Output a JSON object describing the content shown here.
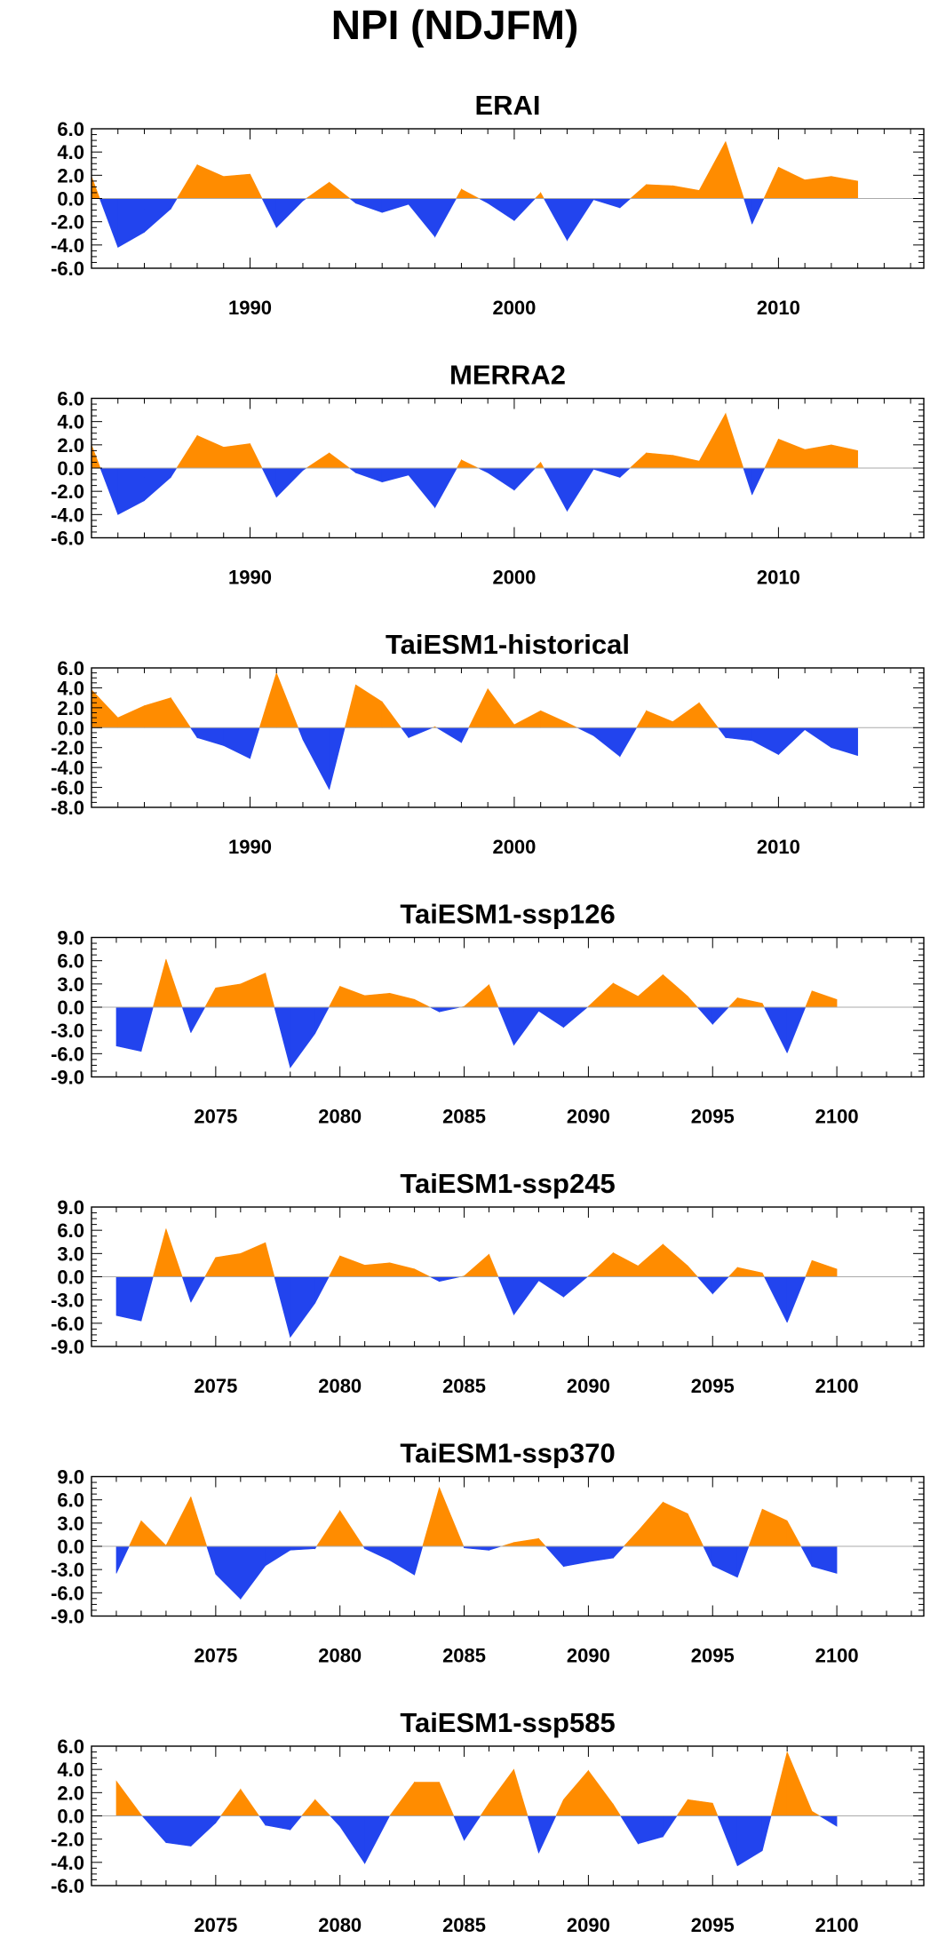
{
  "figure": {
    "title": "NPI (NDJFM)"
  },
  "colors": {
    "positive": "#FF8C00",
    "negative": "#2244EE",
    "zero_line": "#AAAAAA",
    "frame": "#000000"
  },
  "chart_data": [
    {
      "type": "area",
      "title": "ERAI",
      "xlabel": "",
      "ylabel": "",
      "xlim": [
        1984,
        2015.5
      ],
      "ylim": [
        -6,
        6
      ],
      "yticks": [
        6,
        4,
        2,
        0,
        -2,
        -4,
        -6
      ],
      "ytick_labels": [
        "6.0",
        "4.0",
        "2.0",
        "0.0",
        "-2.0",
        "-4.0",
        "-6.0"
      ],
      "xticks": [
        1990,
        2000,
        2010
      ],
      "xtick_labels": [
        "1990",
        "2000",
        "2010"
      ],
      "grid": false,
      "x": [
        1984,
        1985,
        1986,
        1987,
        1988,
        1989,
        1990,
        1991,
        1992,
        1993,
        1994,
        1995,
        1996,
        1997,
        1998,
        1999,
        2000,
        2001,
        2002,
        2003,
        2004,
        2005,
        2006,
        2007,
        2008,
        2009,
        2010,
        2011,
        2012,
        2013,
        2014
      ],
      "values": [
        1.9,
        -4.2,
        -2.9,
        -0.9,
        2.9,
        1.9,
        2.1,
        -2.5,
        -0.2,
        1.4,
        -0.4,
        -1.2,
        -0.5,
        -3.3,
        0.8,
        -0.4,
        -1.9,
        0.5,
        -3.6,
        -0.1,
        -0.8,
        1.2,
        1.1,
        0.7,
        4.9,
        -2.2,
        2.7,
        1.6,
        1.9,
        1.5,
        null
      ]
    },
    {
      "type": "area",
      "title": "MERRA2",
      "xlabel": "",
      "ylabel": "",
      "xlim": [
        1984,
        2015.5
      ],
      "ylim": [
        -6,
        6
      ],
      "yticks": [
        6,
        4,
        2,
        0,
        -2,
        -4,
        -6
      ],
      "ytick_labels": [
        "6.0",
        "4.0",
        "2.0",
        "0.0",
        "-2.0",
        "-4.0",
        "-6.0"
      ],
      "xticks": [
        1990,
        2000,
        2010
      ],
      "xtick_labels": [
        "1990",
        "2000",
        "2010"
      ],
      "grid": false,
      "x": [
        1984,
        1985,
        1986,
        1987,
        1988,
        1989,
        1990,
        1991,
        1992,
        1993,
        1994,
        1995,
        1996,
        1997,
        1998,
        1999,
        2000,
        2001,
        2002,
        2003,
        2004,
        2005,
        2006,
        2007,
        2008,
        2009,
        2010,
        2011,
        2012,
        2013,
        2014
      ],
      "values": [
        2.0,
        -4.0,
        -2.8,
        -0.8,
        2.8,
        1.8,
        2.1,
        -2.5,
        -0.2,
        1.3,
        -0.4,
        -1.2,
        -0.6,
        -3.4,
        0.7,
        -0.4,
        -1.9,
        0.5,
        -3.7,
        -0.1,
        -0.8,
        1.3,
        1.1,
        0.6,
        4.7,
        -2.3,
        2.5,
        1.6,
        2.0,
        1.5,
        null
      ]
    },
    {
      "type": "area",
      "title": "TaiESM1-historical",
      "xlabel": "",
      "ylabel": "",
      "xlim": [
        1984,
        2015.5
      ],
      "ylim": [
        -8,
        6
      ],
      "yticks": [
        6,
        4,
        2,
        0,
        -2,
        -4,
        -6,
        -8
      ],
      "ytick_labels": [
        "6.0",
        "4.0",
        "2.0",
        "0.0",
        "-2.0",
        "-4.0",
        "-6.0",
        "-8.0"
      ],
      "xticks": [
        1990,
        2000,
        2010
      ],
      "xtick_labels": [
        "1990",
        "2000",
        "2010"
      ],
      "grid": false,
      "x": [
        1984,
        1985,
        1986,
        1987,
        1988,
        1989,
        1990,
        1991,
        1992,
        1993,
        1994,
        1995,
        1996,
        1997,
        1998,
        1999,
        2000,
        2001,
        2002,
        2003,
        2004,
        2005,
        2006,
        2007,
        2008,
        2009,
        2010,
        2011,
        2012,
        2013,
        2014
      ],
      "values": [
        3.8,
        1.0,
        2.2,
        3.0,
        -1.0,
        -1.8,
        -3.1,
        5.5,
        -1.2,
        -6.2,
        4.3,
        2.6,
        -1.0,
        0.1,
        -1.5,
        3.9,
        0.3,
        1.7,
        0.5,
        -0.8,
        -2.9,
        1.7,
        0.6,
        2.5,
        -1.0,
        -1.3,
        -2.7,
        -0.2,
        -2.0,
        -2.8,
        null
      ]
    },
    {
      "type": "area",
      "title": "TaiESM1-ssp126",
      "xlabel": "",
      "ylabel": "",
      "xlim": [
        2070,
        2103.5
      ],
      "ylim": [
        -9,
        9
      ],
      "yticks": [
        9,
        6,
        3,
        0,
        -3,
        -6,
        -9
      ],
      "ytick_labels": [
        "9.0",
        "6.0",
        "3.0",
        "0.0",
        "-3.0",
        "-6.0",
        "-9.0"
      ],
      "xticks": [
        2075,
        2080,
        2085,
        2090,
        2095,
        2100
      ],
      "xtick_labels": [
        "2075",
        "2080",
        "2085",
        "2090",
        "2095",
        "2100"
      ],
      "grid": false,
      "x": [
        2071,
        2072,
        2073,
        2074,
        2075,
        2076,
        2077,
        2078,
        2079,
        2080,
        2081,
        2082,
        2083,
        2084,
        2085,
        2086,
        2087,
        2088,
        2089,
        2090,
        2091,
        2092,
        2093,
        2094,
        2095,
        2096,
        2097,
        2098,
        2099,
        2100
      ],
      "values": [
        -5.0,
        -5.7,
        6.2,
        -3.3,
        2.5,
        3.0,
        4.4,
        -7.8,
        -3.4,
        2.7,
        1.5,
        1.8,
        1.0,
        -0.6,
        0.1,
        2.9,
        -4.9,
        -0.5,
        -2.6,
        0.1,
        3.1,
        1.4,
        4.2,
        1.4,
        -2.2,
        1.2,
        0.5,
        -5.9,
        2.1,
        1.0
      ]
    },
    {
      "type": "area",
      "title": "TaiESM1-ssp245",
      "xlabel": "",
      "ylabel": "",
      "xlim": [
        2070,
        2103.5
      ],
      "ylim": [
        -9,
        9
      ],
      "yticks": [
        9,
        6,
        3,
        0,
        -3,
        -6,
        -9
      ],
      "ytick_labels": [
        "9.0",
        "6.0",
        "3.0",
        "0.0",
        "-3.0",
        "-6.0",
        "-9.0"
      ],
      "xticks": [
        2075,
        2080,
        2085,
        2090,
        2095,
        2100
      ],
      "xtick_labels": [
        "2075",
        "2080",
        "2085",
        "2090",
        "2095",
        "2100"
      ],
      "grid": false,
      "x": [
        2071,
        2072,
        2073,
        2074,
        2075,
        2076,
        2077,
        2078,
        2079,
        2080,
        2081,
        2082,
        2083,
        2084,
        2085,
        2086,
        2087,
        2088,
        2089,
        2090,
        2091,
        2092,
        2093,
        2094,
        2095,
        2096,
        2097,
        2098,
        2099,
        2100
      ],
      "values": [
        -5.0,
        -5.7,
        6.2,
        -3.3,
        2.5,
        3.0,
        4.4,
        -7.8,
        -3.4,
        2.7,
        1.5,
        1.8,
        1.0,
        -0.6,
        0.1,
        2.9,
        -4.9,
        -0.5,
        -2.6,
        0.1,
        3.1,
        1.4,
        4.2,
        1.4,
        -2.2,
        1.2,
        0.5,
        -5.9,
        2.1,
        1.0
      ]
    },
    {
      "type": "area",
      "title": "TaiESM1-ssp370",
      "xlabel": "",
      "ylabel": "",
      "xlim": [
        2070,
        2103.5
      ],
      "ylim": [
        -9,
        9
      ],
      "yticks": [
        9,
        6,
        3,
        0,
        -3,
        -6,
        -9
      ],
      "ytick_labels": [
        "9.0",
        "6.0",
        "3.0",
        "0.0",
        "-3.0",
        "-6.0",
        "-9.0"
      ],
      "xticks": [
        2075,
        2080,
        2085,
        2090,
        2095,
        2100
      ],
      "xtick_labels": [
        "2075",
        "2080",
        "2085",
        "2090",
        "2095",
        "2100"
      ],
      "grid": false,
      "x": [
        2071,
        2072,
        2073,
        2074,
        2075,
        2076,
        2077,
        2078,
        2079,
        2080,
        2081,
        2082,
        2083,
        2084,
        2085,
        2086,
        2087,
        2088,
        2089,
        2090,
        2091,
        2092,
        2093,
        2094,
        2095,
        2096,
        2097,
        2098,
        2099,
        2100
      ],
      "values": [
        -3.5,
        3.3,
        0.1,
        6.4,
        -3.6,
        -6.8,
        -2.5,
        -0.5,
        -0.3,
        4.6,
        -0.3,
        -1.8,
        -3.7,
        7.6,
        -0.2,
        -0.5,
        0.5,
        1.0,
        -2.6,
        -2.0,
        -1.5,
        2.0,
        5.7,
        4.2,
        -2.5,
        -4.0,
        4.8,
        3.3,
        -2.6,
        -3.5
      ]
    },
    {
      "type": "area",
      "title": "TaiESM1-ssp585",
      "xlabel": "",
      "ylabel": "",
      "xlim": [
        2070,
        2103.5
      ],
      "ylim": [
        -6,
        6
      ],
      "yticks": [
        6,
        4,
        2,
        0,
        -2,
        -4,
        -6
      ],
      "ytick_labels": [
        "6.0",
        "4.0",
        "2.0",
        "0.0",
        "-2.0",
        "-4.0",
        "-6.0"
      ],
      "xticks": [
        2075,
        2080,
        2085,
        2090,
        2095,
        2100
      ],
      "xtick_labels": [
        "2075",
        "2080",
        "2085",
        "2090",
        "2095",
        "2100"
      ],
      "grid": false,
      "x": [
        2071,
        2072,
        2073,
        2074,
        2075,
        2076,
        2077,
        2078,
        2079,
        2080,
        2081,
        2082,
        2083,
        2084,
        2085,
        2086,
        2087,
        2088,
        2089,
        2090,
        2091,
        2092,
        2093,
        2094,
        2095,
        2096,
        2097,
        2098,
        2099,
        2100
      ],
      "values": [
        3.0,
        0.1,
        -2.3,
        -2.6,
        -0.6,
        2.3,
        -0.8,
        -1.2,
        1.4,
        -0.9,
        -4.1,
        0.0,
        2.9,
        2.9,
        -2.1,
        1.1,
        4.0,
        -3.2,
        1.4,
        3.9,
        1.0,
        -2.4,
        -1.8,
        1.4,
        1.1,
        -4.3,
        -3.0,
        5.5,
        0.4,
        -0.9
      ]
    }
  ]
}
